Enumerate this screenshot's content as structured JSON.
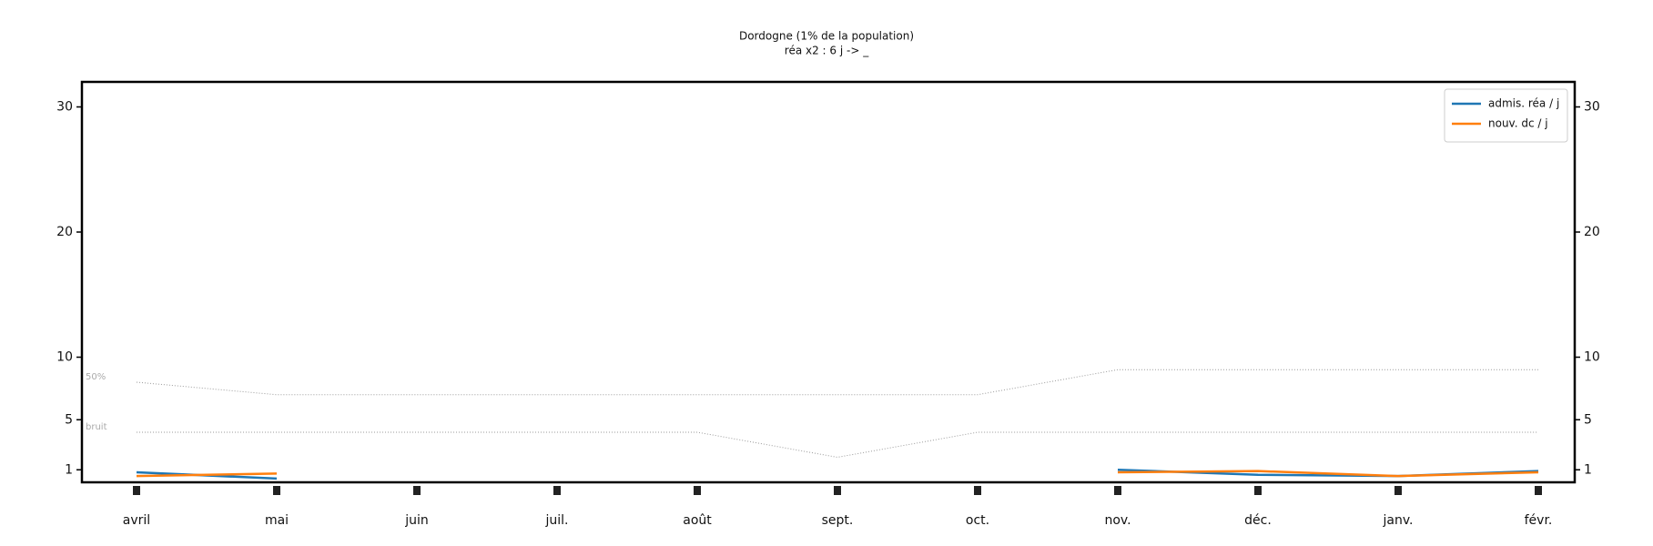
{
  "chart_data": {
    "type": "line",
    "title": "Dordogne (1% de la population)",
    "subtitle": "réa x2 : 6 j -> _",
    "categories": [
      "avril",
      "mai",
      "juin",
      "juil.",
      "août",
      "sept.",
      "oct.",
      "nov.",
      "déc.",
      "janv.",
      "févr."
    ],
    "series": [
      {
        "name": "admis. réa / j",
        "color": "#1f77b4",
        "values": [
          0.8,
          0.3,
          null,
          null,
          null,
          null,
          null,
          1.0,
          0.6,
          0.5,
          0.9
        ]
      },
      {
        "name": "nouv. dc / j",
        "color": "#ff7f0e",
        "values": [
          0.5,
          0.7,
          null,
          null,
          null,
          null,
          null,
          0.8,
          0.9,
          0.5,
          0.8
        ]
      }
    ],
    "annotations": [
      {
        "label": "50%",
        "values": [
          8,
          7,
          7,
          7,
          7,
          7,
          7,
          9,
          9,
          9,
          9
        ]
      },
      {
        "label": "bruit",
        "values": [
          4,
          4,
          4,
          4,
          4,
          2,
          4,
          4,
          4,
          4,
          4
        ]
      }
    ],
    "ylim": [
      0,
      32
    ],
    "yticks": [
      1,
      5,
      10,
      20,
      30
    ],
    "legend": "upper right",
    "right_axis": true
  }
}
